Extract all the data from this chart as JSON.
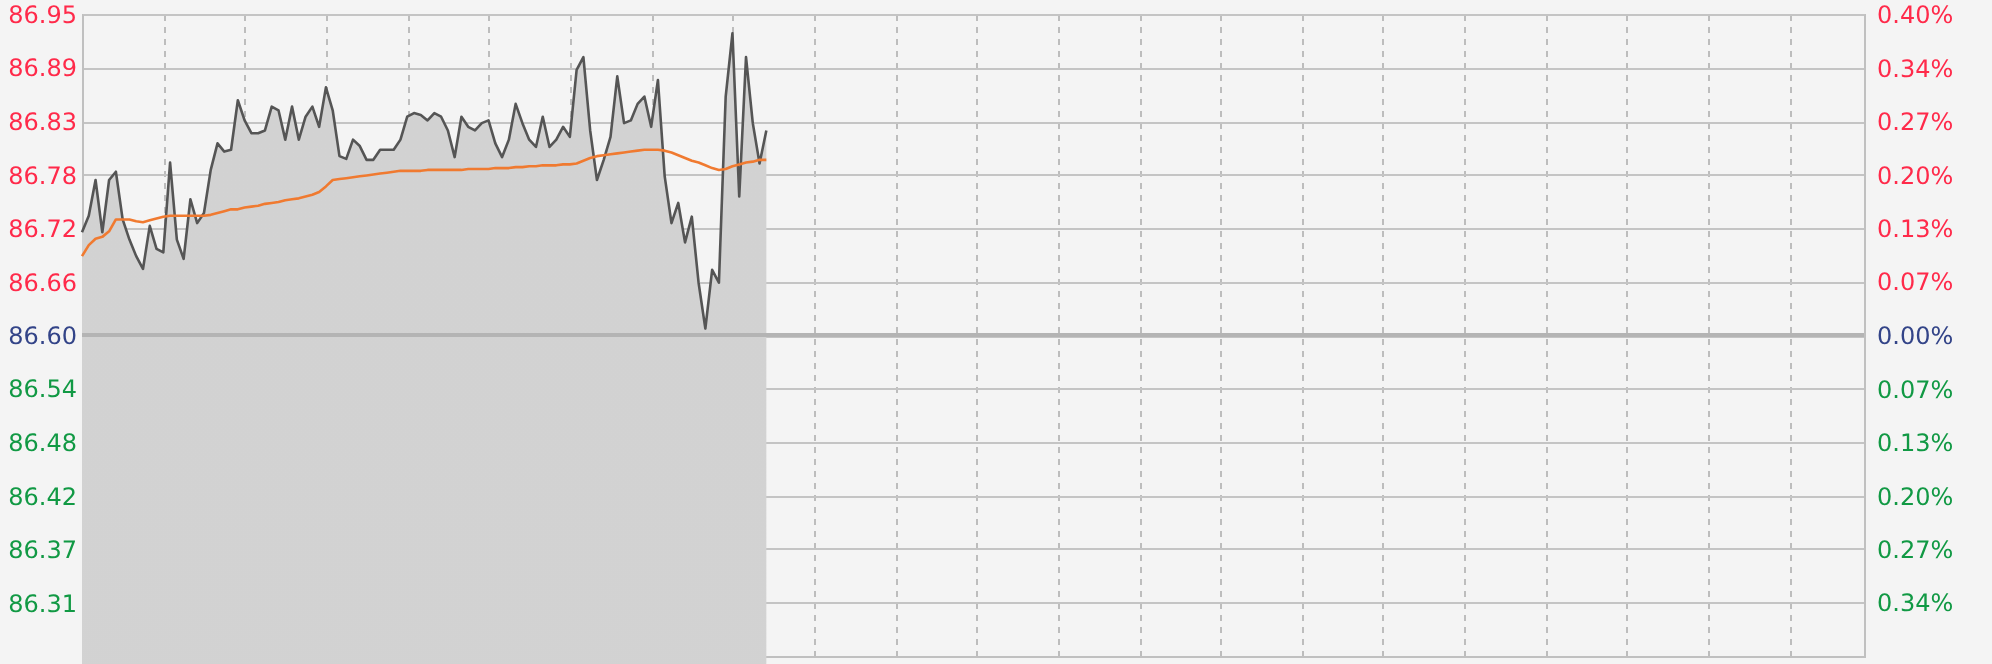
{
  "chart_data": {
    "type": "area",
    "categories": [
      null,
      null,
      null,
      null,
      null,
      null,
      null,
      null,
      null,
      null,
      null,
      null,
      null,
      null,
      null,
      null,
      null,
      null,
      null,
      null,
      null,
      null,
      null,
      null,
      null,
      null,
      null,
      null,
      null,
      null,
      null,
      null,
      null,
      null,
      null,
      null,
      null,
      null,
      null,
      null,
      null,
      null,
      null,
      null,
      null,
      null,
      null,
      null,
      null,
      null,
      null,
      null,
      null,
      null,
      null,
      null,
      null,
      null,
      null,
      null,
      null,
      null,
      null,
      null,
      null,
      null,
      null,
      null,
      null,
      null,
      null,
      null,
      null,
      null,
      null,
      null,
      null,
      null,
      null,
      null,
      null,
      null,
      null,
      null,
      null,
      null,
      null,
      null,
      null,
      null,
      null,
      null,
      null,
      null,
      null,
      null,
      null,
      null,
      null,
      null,
      null,
      null,
      null,
      null,
      null,
      null,
      null,
      null,
      null,
      null,
      null,
      null,
      null,
      null,
      null,
      null,
      null,
      null,
      null,
      null,
      null,
      null,
      null,
      null,
      null,
      null,
      null,
      null,
      null,
      null,
      null,
      null,
      null,
      null,
      null,
      null,
      null,
      null,
      null,
      null,
      null,
      null,
      null,
      null,
      null,
      null,
      null,
      null,
      null,
      null,
      null,
      null,
      null,
      null,
      null,
      null,
      null,
      null,
      null,
      null,
      null,
      null,
      null,
      null,
      null,
      null,
      null,
      null,
      null,
      null,
      null,
      null,
      null,
      null,
      null,
      null,
      null,
      null,
      null,
      null,
      null,
      null,
      null,
      null,
      null,
      null,
      null,
      null,
      null,
      null,
      null,
      null,
      null,
      null,
      null,
      null,
      null,
      null,
      null,
      null,
      null,
      null,
      null,
      null,
      null,
      null,
      null,
      null,
      null,
      null,
      null,
      null,
      null,
      null,
      null,
      null,
      null,
      null,
      null,
      null,
      null,
      null,
      null,
      null,
      null,
      null,
      null,
      null,
      null,
      null,
      null,
      null,
      null,
      null,
      null,
      null,
      null,
      null,
      null,
      null,
      null,
      null,
      null,
      null,
      null,
      null,
      null,
      null,
      null,
      null,
      null,
      null,
      null,
      null,
      null,
      null,
      null,
      null,
      null,
      null,
      null,
      null,
      null,
      null
    ],
    "series": [
      {
        "color": "#555555",
        "values": [
          86.712,
          86.73,
          86.769,
          86.712,
          86.769,
          86.778,
          86.726,
          86.704,
          86.686,
          86.672,
          86.719,
          86.694,
          86.69,
          86.788,
          86.704,
          86.683,
          86.748,
          86.722,
          86.733,
          86.78,
          86.809,
          86.8,
          86.802,
          86.856,
          86.834,
          86.82,
          86.82,
          86.823,
          86.849,
          86.845,
          86.813,
          86.849,
          86.813,
          86.838,
          86.849,
          86.827,
          86.87,
          86.845,
          86.795,
          86.792,
          86.813,
          86.806,
          86.791,
          86.791,
          86.802,
          86.802,
          86.802,
          86.813,
          86.838,
          86.842,
          86.84,
          86.834,
          86.842,
          86.838,
          86.823,
          86.794,
          86.838,
          86.827,
          86.823,
          86.831,
          86.834,
          86.809,
          86.794,
          86.813,
          86.852,
          86.831,
          86.813,
          86.805,
          86.838,
          86.805,
          86.813,
          86.827,
          86.816,
          86.889,
          86.903,
          86.823,
          86.769,
          86.791,
          86.816,
          86.882,
          86.831,
          86.834,
          86.852,
          86.86,
          86.827,
          86.878,
          86.773,
          86.722,
          86.744,
          86.701,
          86.729,
          86.657,
          86.607,
          86.671,
          86.657,
          86.86,
          86.929,
          86.751,
          86.903,
          86.831,
          86.787,
          86.823,
          null,
          null,
          null,
          null,
          null,
          null,
          null,
          null,
          null,
          null,
          null,
          null,
          null,
          null,
          null,
          null,
          null,
          null,
          null,
          null,
          null,
          null,
          null,
          null,
          null,
          null,
          null,
          null,
          null,
          null,
          null,
          null,
          null,
          null,
          null,
          null,
          null,
          null,
          null,
          null,
          null,
          null,
          null,
          null,
          null,
          null,
          null,
          null,
          null,
          null,
          null,
          null,
          null,
          null,
          null,
          null,
          null,
          null,
          null,
          null,
          null,
          null,
          null,
          null,
          null,
          null,
          null,
          null,
          null,
          null,
          null,
          null,
          null,
          null,
          null,
          null,
          null,
          null,
          null,
          null,
          null,
          null,
          null,
          null,
          null,
          null,
          null,
          null,
          null,
          null,
          null,
          null,
          null,
          null,
          null,
          null,
          null,
          null,
          null,
          null,
          null,
          null,
          null,
          null,
          null,
          null,
          null,
          null,
          null,
          null,
          null,
          null,
          null,
          null,
          null,
          null,
          null,
          null,
          null,
          null,
          null,
          null,
          null,
          null,
          null,
          null,
          null,
          null,
          null,
          null,
          null,
          null,
          null,
          null,
          null,
          null,
          null,
          null,
          null,
          null,
          null,
          null,
          null,
          null,
          null,
          null,
          null,
          null,
          null,
          null,
          null,
          null,
          null,
          null,
          null,
          null,
          null,
          null,
          null,
          null,
          null,
          null
        ]
      },
      {
        "type": "line",
        "color": "#f07a30",
        "values": [
          86.686,
          86.698,
          86.705,
          86.707,
          86.713,
          86.726,
          86.726,
          86.726,
          86.724,
          86.723,
          86.725,
          86.727,
          86.729,
          86.73,
          86.73,
          86.73,
          86.73,
          86.73,
          86.73,
          86.731,
          86.733,
          86.735,
          86.737,
          86.737,
          86.739,
          86.74,
          86.741,
          86.743,
          86.744,
          86.745,
          86.747,
          86.748,
          86.749,
          86.751,
          86.753,
          86.756,
          86.762,
          86.769,
          86.77,
          86.771,
          86.772,
          86.773,
          86.774,
          86.775,
          86.776,
          86.777,
          86.778,
          86.779,
          86.779,
          86.779,
          86.779,
          86.78,
          86.78,
          86.78,
          86.78,
          86.78,
          86.78,
          86.781,
          86.781,
          86.781,
          86.781,
          86.782,
          86.782,
          86.782,
          86.783,
          86.783,
          86.784,
          86.784,
          86.785,
          86.785,
          86.785,
          86.786,
          86.786,
          86.787,
          86.79,
          86.793,
          86.795,
          86.796,
          86.797,
          86.798,
          86.799,
          86.8,
          86.801,
          86.802,
          86.802,
          86.802,
          86.801,
          86.799,
          86.796,
          86.793,
          86.79,
          86.788,
          86.785,
          86.782,
          86.78,
          86.781,
          86.784,
          86.786,
          86.788,
          86.789,
          86.791,
          86.791,
          null,
          null,
          null,
          null,
          null,
          null,
          null,
          null,
          null,
          null,
          null,
          null,
          null,
          null,
          null,
          null,
          null,
          null,
          null,
          null,
          null,
          null,
          null,
          null,
          null,
          null,
          null,
          null,
          null,
          null,
          null,
          null,
          null,
          null,
          null,
          null,
          null,
          null,
          null,
          null,
          null,
          null,
          null,
          null,
          null,
          null,
          null,
          null,
          null,
          null,
          null,
          null,
          null,
          null,
          null,
          null,
          null,
          null,
          null,
          null,
          null,
          null,
          null,
          null,
          null,
          null,
          null,
          null,
          null,
          null,
          null,
          null,
          null,
          null,
          null,
          null,
          null,
          null,
          null,
          null,
          null,
          null,
          null,
          null,
          null,
          null,
          null,
          null,
          null,
          null,
          null,
          null,
          null,
          null,
          null,
          null,
          null,
          null,
          null,
          null,
          null,
          null,
          null,
          null,
          null,
          null,
          null,
          null,
          null,
          null,
          null,
          null,
          null,
          null,
          null,
          null,
          null,
          null,
          null,
          null,
          null,
          null,
          null,
          null,
          null,
          null,
          null,
          null,
          null,
          null,
          null,
          null,
          null,
          null,
          null,
          null,
          null,
          null,
          null,
          null,
          null,
          null,
          null,
          null,
          null,
          null,
          null,
          null,
          null,
          null,
          null,
          null,
          null,
          null,
          null,
          null,
          null,
          null,
          null,
          null,
          null,
          null
        ]
      }
    ],
    "ylim": [
      86.25,
      86.95
    ],
    "yticks": [
      {
        "value": 86.95,
        "label": "86.95"
      },
      {
        "value": 86.8917,
        "label": "86.89"
      },
      {
        "value": 86.8333,
        "label": "86.83"
      },
      {
        "value": 86.775,
        "label": "86.78"
      },
      {
        "value": 86.7167,
        "label": "86.72"
      },
      {
        "value": 86.6583,
        "label": "86.66"
      },
      {
        "value": 86.6,
        "label": "86.60"
      },
      {
        "value": 86.5417,
        "label": "86.54"
      },
      {
        "value": 86.4833,
        "label": "86.48"
      },
      {
        "value": 86.425,
        "label": "86.42"
      },
      {
        "value": 86.3667,
        "label": "86.37"
      },
      {
        "value": 86.3083,
        "label": "86.31"
      }
    ],
    "y2lim": [
      -0.4042,
      0.4042
    ],
    "y2ticks": [
      {
        "value": 0.4042,
        "label": "0.40%"
      },
      {
        "value": 0.3368,
        "label": "0.34%"
      },
      {
        "value": 0.2694,
        "label": "0.27%"
      },
      {
        "value": 0.2021,
        "label": "0.20%"
      },
      {
        "value": 0.1347,
        "label": "0.13%"
      },
      {
        "value": 0.0674,
        "label": "0.07%"
      },
      {
        "value": 0,
        "label": "0.00%"
      },
      {
        "value": -0.0674,
        "label": "0.07%"
      },
      {
        "value": -0.1347,
        "label": "0.13%"
      },
      {
        "value": -0.2021,
        "label": "0.20%"
      },
      {
        "value": -0.2694,
        "label": "0.27%"
      },
      {
        "value": -0.3368,
        "label": "0.34%"
      }
    ],
    "ref_lines": [
      {
        "axis": "y",
        "value": 86.6,
        "color": "#b4b4b4"
      }
    ],
    "grid": true,
    "tick_labels": "y",
    "marker": "none"
  }
}
